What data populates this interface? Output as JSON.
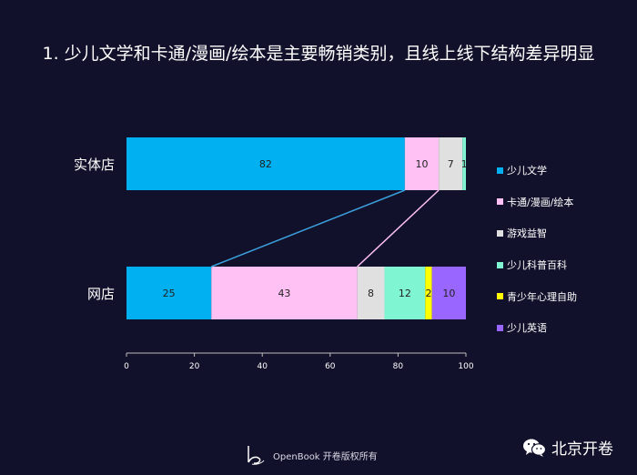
{
  "title": "1. 少儿文学和卡通/漫画/绘本是主要畅销类别，且线上线下结构差异明显",
  "chart_data": {
    "type": "bar",
    "orientation": "horizontal",
    "stacked": true,
    "categories": [
      "实体店",
      "网店"
    ],
    "series": [
      {
        "name": "少儿文学",
        "color": "#00b0f0",
        "values": [
          82,
          25
        ]
      },
      {
        "name": "卡通/漫画/绘本",
        "color": "#ffc1f4",
        "values": [
          10,
          43
        ]
      },
      {
        "name": "游戏益智",
        "color": "#e0e0e0",
        "values": [
          7,
          8
        ]
      },
      {
        "name": "少儿科普百科",
        "color": "#7ff5d2",
        "values": [
          1,
          12
        ]
      },
      {
        "name": "青少年心理自助",
        "color": "#ffff00",
        "values": [
          0,
          2
        ]
      },
      {
        "name": "少儿英语",
        "color": "#9966ff",
        "values": [
          0,
          10
        ]
      }
    ],
    "data_labels": [
      [
        "82",
        "10",
        "7",
        "1",
        "",
        ""
      ],
      [
        "25",
        "43",
        "8",
        "12",
        "2",
        "10"
      ]
    ],
    "xlim": [
      0,
      100
    ],
    "xticks": [
      "0",
      "20",
      "40",
      "60",
      "80",
      "100"
    ],
    "connector_colors": [
      "#3aa0dc",
      "#ffc1f4"
    ],
    "legend_position": "right",
    "grid": false
  },
  "footer": {
    "brand": "OpenBook 开卷版权所有"
  },
  "watermark": {
    "text": "北京开卷"
  }
}
